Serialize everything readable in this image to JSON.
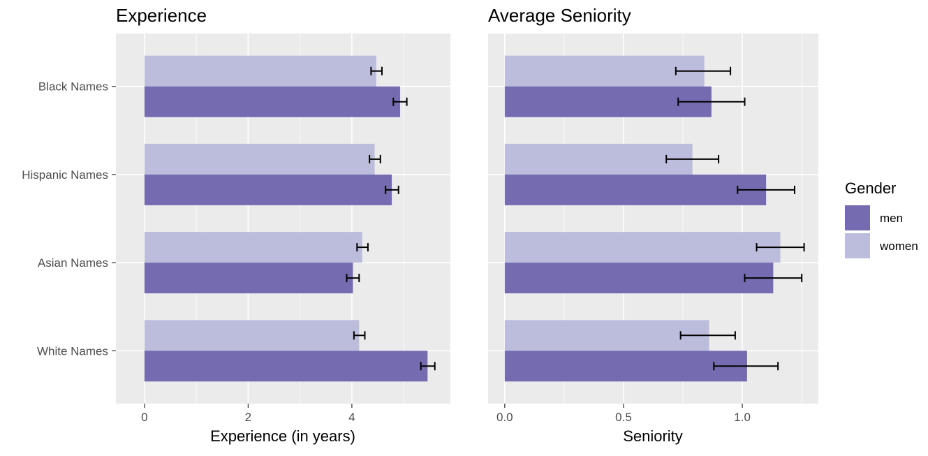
{
  "chart_data": [
    {
      "type": "bar",
      "orientation": "horizontal",
      "title": "Experience",
      "xlabel": "Experience (in years)",
      "ylabel": "",
      "categories": [
        "Black Names",
        "Hispanic Names",
        "Asian Names",
        "White Names"
      ],
      "xlim": [
        -0.55,
        5.9
      ],
      "xticks": [
        "0",
        "2",
        "4"
      ],
      "xtick_values": [
        0,
        2,
        4
      ],
      "grid": true,
      "series": [
        {
          "name": "women",
          "values": [
            4.47,
            4.44,
            4.2,
            4.14
          ],
          "err_low": [
            4.37,
            4.34,
            4.1,
            4.04
          ],
          "err_high": [
            4.58,
            4.55,
            4.31,
            4.25
          ]
        },
        {
          "name": "men",
          "values": [
            4.93,
            4.77,
            4.02,
            5.46
          ],
          "err_low": [
            4.8,
            4.65,
            3.9,
            5.33
          ],
          "err_high": [
            5.06,
            4.9,
            4.14,
            5.6
          ]
        }
      ]
    },
    {
      "type": "bar",
      "orientation": "horizontal",
      "title": "Average Seniority",
      "xlabel": "Seniority",
      "ylabel": "",
      "categories": [
        "Black Names",
        "Hispanic Names",
        "Asian Names",
        "White Names"
      ],
      "xlim": [
        -0.07,
        1.32
      ],
      "xticks": [
        "0.0",
        "0.5",
        "1.0"
      ],
      "xtick_values": [
        0,
        0.5,
        1.0
      ],
      "grid": true,
      "series": [
        {
          "name": "women",
          "values": [
            0.84,
            0.79,
            1.16,
            0.86
          ],
          "err_low": [
            0.72,
            0.68,
            1.06,
            0.74
          ],
          "err_high": [
            0.95,
            0.9,
            1.26,
            0.97
          ]
        },
        {
          "name": "men",
          "values": [
            0.87,
            1.1,
            1.13,
            1.02
          ],
          "err_low": [
            0.73,
            0.98,
            1.01,
            0.88
          ],
          "err_high": [
            1.01,
            1.22,
            1.25,
            1.15
          ]
        }
      ]
    }
  ],
  "legend": {
    "title": "Gender",
    "items": [
      {
        "label": "men",
        "color": "#756bb1"
      },
      {
        "label": "women",
        "color": "#bcbddc"
      }
    ],
    "placement": "right"
  },
  "colors": {
    "panel_bg": "#ebebeb",
    "grid": "#ffffff",
    "men": "#756bb1",
    "women": "#bcbddc",
    "error_bar": "#000000",
    "tick": "#333333"
  }
}
